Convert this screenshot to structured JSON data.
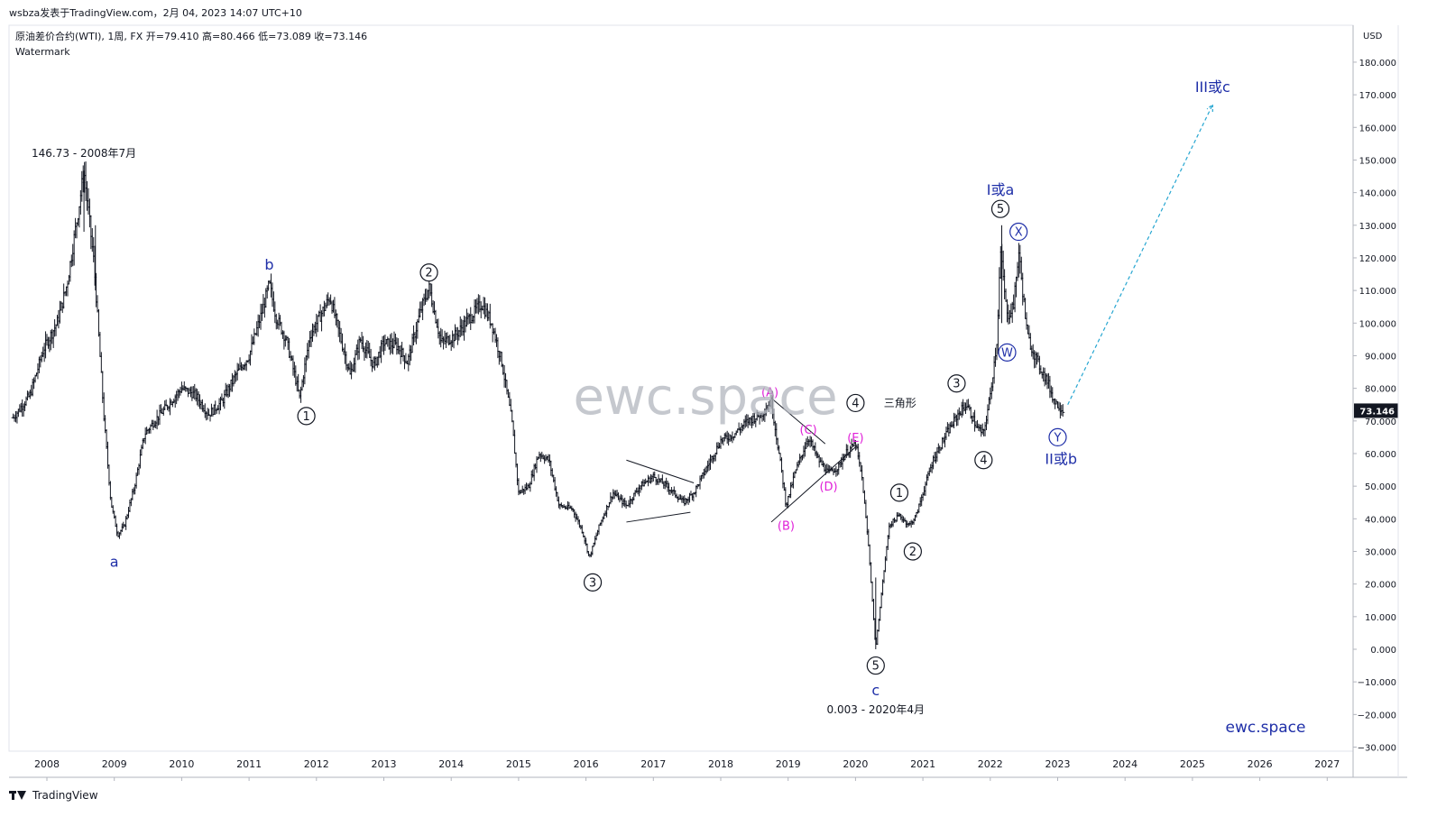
{
  "header": {
    "text": "wsbza发表于TradingView.com，2月 04, 2023 14:07 UTC+10"
  },
  "footer": {
    "text": "TradingView",
    "logo": "tradingview-logo-icon"
  },
  "chart_data": {
    "type": "bar",
    "title": "原油差价合约(WTI), 1周, FX  开=79.410  高=80.466  低=73.089  收=73.146",
    "subtitle": "Watermark",
    "watermark": "ewc.space",
    "brand_text": "ewc.space",
    "currency": "USD",
    "last_price": {
      "value": 73.146,
      "label": "73.146",
      "color": "#131722"
    },
    "ylim": [
      -30,
      185
    ],
    "y_ticks": [
      -30,
      -20,
      -10,
      0,
      10,
      20,
      30,
      40,
      50,
      60,
      70,
      80,
      90,
      100,
      110,
      120,
      130,
      140,
      150,
      160,
      170,
      180
    ],
    "y_tick_labels": [
      "−30.000",
      "−20.000",
      "−10.000",
      "0.000",
      "10.000",
      "20.000",
      "30.000",
      "40.000",
      "50.000",
      "60.000",
      "70.000",
      "80.000",
      "90.000",
      "100.000",
      "110.000",
      "120.000",
      "130.000",
      "140.000",
      "150.000",
      "160.000",
      "170.000",
      "180.000"
    ],
    "xlim": [
      2007.5,
      2027.35
    ],
    "x_ticks": [
      2008,
      2009,
      2010,
      2011,
      2012,
      2013,
      2014,
      2015,
      2016,
      2017,
      2018,
      2019,
      2020,
      2021,
      2022,
      2023,
      2024,
      2025,
      2026,
      2027
    ],
    "x_tick_labels": [
      "2008",
      "2009",
      "2010",
      "2011",
      "2012",
      "2013",
      "2014",
      "2015",
      "2016",
      "2017",
      "2018",
      "2019",
      "2020",
      "2021",
      "2022",
      "2023",
      "2024",
      "2025",
      "2026",
      "2027"
    ],
    "grid": false,
    "price_path": [
      [
        2007.5,
        71
      ],
      [
        2007.75,
        78
      ],
      [
        2007.95,
        92
      ],
      [
        2008.15,
        100
      ],
      [
        2008.3,
        112
      ],
      [
        2008.47,
        135
      ],
      [
        2008.55,
        146.73
      ],
      [
        2008.7,
        118
      ],
      [
        2008.85,
        70
      ],
      [
        2008.95,
        45
      ],
      [
        2009.05,
        35
      ],
      [
        2009.15,
        38
      ],
      [
        2009.3,
        50
      ],
      [
        2009.45,
        66
      ],
      [
        2009.6,
        70
      ],
      [
        2009.8,
        75
      ],
      [
        2010.0,
        80
      ],
      [
        2010.2,
        78
      ],
      [
        2010.4,
        72
      ],
      [
        2010.6,
        76
      ],
      [
        2010.8,
        84
      ],
      [
        2011.0,
        90
      ],
      [
        2011.2,
        104
      ],
      [
        2011.3,
        112
      ],
      [
        2011.4,
        102
      ],
      [
        2011.55,
        95
      ],
      [
        2011.7,
        82
      ],
      [
        2011.75,
        77
      ],
      [
        2011.9,
        96
      ],
      [
        2012.1,
        104
      ],
      [
        2012.2,
        108
      ],
      [
        2012.35,
        96
      ],
      [
        2012.5,
        84
      ],
      [
        2012.65,
        95
      ],
      [
        2012.85,
        87
      ],
      [
        2013.0,
        94
      ],
      [
        2013.2,
        93
      ],
      [
        2013.35,
        88
      ],
      [
        2013.55,
        104
      ],
      [
        2013.67,
        111
      ],
      [
        2013.85,
        94
      ],
      [
        2014.05,
        96
      ],
      [
        2014.25,
        101
      ],
      [
        2014.45,
        106
      ],
      [
        2014.6,
        100
      ],
      [
        2014.75,
        88
      ],
      [
        2014.9,
        70
      ],
      [
        2015.0,
        48
      ],
      [
        2015.15,
        50
      ],
      [
        2015.3,
        60
      ],
      [
        2015.45,
        58
      ],
      [
        2015.6,
        44
      ],
      [
        2015.8,
        43
      ],
      [
        2015.95,
        36
      ],
      [
        2016.05,
        28
      ],
      [
        2016.2,
        38
      ],
      [
        2016.4,
        48
      ],
      [
        2016.6,
        44
      ],
      [
        2016.8,
        50
      ],
      [
        2017.0,
        53
      ],
      [
        2017.2,
        50
      ],
      [
        2017.45,
        45
      ],
      [
        2017.6,
        48
      ],
      [
        2017.8,
        56
      ],
      [
        2018.0,
        64
      ],
      [
        2018.2,
        66
      ],
      [
        2018.4,
        70
      ],
      [
        2018.6,
        72
      ],
      [
        2018.75,
        76
      ],
      [
        2018.9,
        55
      ],
      [
        2018.97,
        44
      ],
      [
        2019.1,
        54
      ],
      [
        2019.3,
        65
      ],
      [
        2019.45,
        58
      ],
      [
        2019.6,
        54
      ],
      [
        2019.75,
        56
      ],
      [
        2019.85,
        60
      ],
      [
        2020.0,
        63
      ],
      [
        2020.1,
        52
      ],
      [
        2020.2,
        30
      ],
      [
        2020.3,
        0.003
      ],
      [
        2020.4,
        20
      ],
      [
        2020.5,
        38
      ],
      [
        2020.65,
        41
      ],
      [
        2020.8,
        38
      ],
      [
        2020.9,
        41
      ],
      [
        2021.0,
        48
      ],
      [
        2021.15,
        58
      ],
      [
        2021.35,
        66
      ],
      [
        2021.55,
        73
      ],
      [
        2021.65,
        75
      ],
      [
        2021.8,
        68
      ],
      [
        2021.9,
        66
      ],
      [
        2022.0,
        78
      ],
      [
        2022.1,
        95
      ],
      [
        2022.15,
        122
      ],
      [
        2022.25,
        102
      ],
      [
        2022.35,
        106
      ],
      [
        2022.42,
        122
      ],
      [
        2022.55,
        96
      ],
      [
        2022.7,
        88
      ],
      [
        2022.85,
        82
      ],
      [
        2022.95,
        76
      ],
      [
        2023.05,
        74
      ],
      [
        2023.09,
        73.146
      ]
    ],
    "wave_labels": [
      {
        "text": "146.73 - 2008年7月",
        "x": 2008.55,
        "y": 152,
        "style": "plain"
      },
      {
        "text": "a",
        "x": 2009.0,
        "y": 27,
        "style": "blue"
      },
      {
        "text": "b",
        "x": 2011.3,
        "y": 118,
        "style": "blue"
      },
      {
        "text": "1",
        "x": 2011.85,
        "y": 71.5,
        "style": "circled"
      },
      {
        "text": "2",
        "x": 2013.67,
        "y": 115.5,
        "style": "circled"
      },
      {
        "text": "3",
        "x": 2016.1,
        "y": 20.5,
        "style": "circled"
      },
      {
        "text": "(A)",
        "x": 2018.73,
        "y": 79,
        "style": "magenta"
      },
      {
        "text": "(B)",
        "x": 2018.97,
        "y": 38,
        "style": "magenta"
      },
      {
        "text": "(C)",
        "x": 2019.3,
        "y": 67.5,
        "style": "magenta"
      },
      {
        "text": "(D)",
        "x": 2019.6,
        "y": 50,
        "style": "magenta"
      },
      {
        "text": "(E)",
        "x": 2020.0,
        "y": 65,
        "style": "magenta"
      },
      {
        "text": "4",
        "x": 2020.0,
        "y": 75.5,
        "style": "circled"
      },
      {
        "text": "三角形",
        "x": 2020.42,
        "y": 75.5,
        "style": "plain"
      },
      {
        "text": "5",
        "x": 2020.3,
        "y": -5,
        "style": "circled"
      },
      {
        "text": "c",
        "x": 2020.3,
        "y": -12.5,
        "style": "blue"
      },
      {
        "text": "0.003 - 2020年4月",
        "x": 2020.3,
        "y": -18.5,
        "style": "plain"
      },
      {
        "text": "1",
        "x": 2020.65,
        "y": 48,
        "style": "circled"
      },
      {
        "text": "2",
        "x": 2020.85,
        "y": 30,
        "style": "circled"
      },
      {
        "text": "3",
        "x": 2021.5,
        "y": 81.5,
        "style": "circled"
      },
      {
        "text": "4",
        "x": 2021.9,
        "y": 58,
        "style": "circled"
      },
      {
        "text": "I或a",
        "x": 2022.15,
        "y": 141,
        "style": "blue"
      },
      {
        "text": "5",
        "x": 2022.15,
        "y": 135,
        "style": "circled"
      },
      {
        "text": "X",
        "x": 2022.42,
        "y": 128,
        "style": "circled-blue"
      },
      {
        "text": "W",
        "x": 2022.25,
        "y": 91,
        "style": "circled-blue"
      },
      {
        "text": "Y",
        "x": 2023.0,
        "y": 65,
        "style": "circled-blue"
      },
      {
        "text": "II或b",
        "x": 2023.05,
        "y": 58.5,
        "style": "blue"
      },
      {
        "text": "III或c",
        "x": 2025.3,
        "y": 172.5,
        "style": "blue"
      }
    ],
    "trendlines": [
      [
        [
          2016.6,
          39
        ],
        [
          2017.55,
          42
        ]
      ],
      [
        [
          2016.6,
          58
        ],
        [
          2017.6,
          51
        ]
      ],
      [
        [
          2018.75,
          77
        ],
        [
          2019.55,
          63
        ]
      ],
      [
        [
          2018.75,
          39
        ],
        [
          2020.0,
          62
        ]
      ]
    ],
    "projection": [
      [
        2023.15,
        75
      ],
      [
        2025.3,
        167
      ]
    ]
  }
}
